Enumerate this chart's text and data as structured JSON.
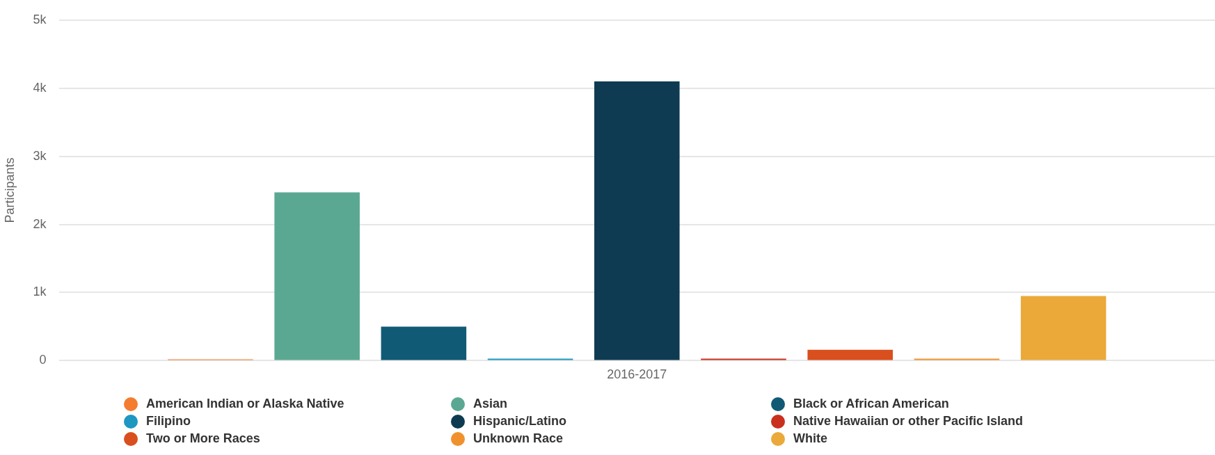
{
  "chart_data": {
    "type": "bar",
    "ylabel": "Participants",
    "categories": [
      "2016-2017"
    ],
    "series": [
      {
        "name": "American Indian or Alaska Native",
        "color": "#f47c30",
        "values": [
          20
        ]
      },
      {
        "name": "Asian",
        "color": "#5ba892",
        "values": [
          2470
        ]
      },
      {
        "name": "Black or African American",
        "color": "#115a75",
        "values": [
          500
        ]
      },
      {
        "name": "Filipino",
        "color": "#1e97c1",
        "values": [
          30
        ]
      },
      {
        "name": "Hispanic/Latino",
        "color": "#0e3b52",
        "values": [
          4100
        ]
      },
      {
        "name": "Native Hawaiian or other Pacific Island",
        "color": "#c9301e",
        "values": [
          30
        ]
      },
      {
        "name": "Two or More Races",
        "color": "#d94f1e",
        "values": [
          160
        ]
      },
      {
        "name": "Unknown Race",
        "color": "#f0912e",
        "values": [
          30
        ]
      },
      {
        "name": "White",
        "color": "#eba93a",
        "values": [
          950
        ]
      }
    ],
    "ylim": [
      0,
      5000
    ],
    "yticks": [
      0,
      {
        "value": 1000,
        "label": "1k"
      },
      {
        "value": 2000,
        "label": "2k"
      },
      {
        "value": 3000,
        "label": "3k"
      },
      {
        "value": 4000,
        "label": "4k"
      },
      {
        "value": 5000,
        "label": "5k"
      }
    ],
    "grid": "y",
    "legend": "bottom"
  }
}
